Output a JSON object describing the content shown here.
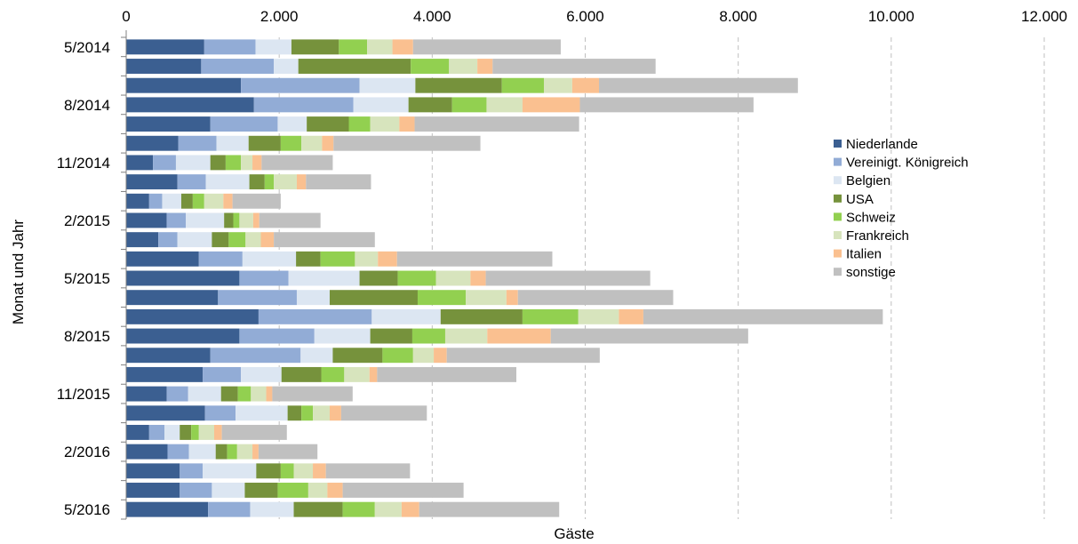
{
  "chart_data": {
    "type": "bar",
    "orientation": "horizontal",
    "stacked": true,
    "xlabel": "Gäste",
    "ylabel": "Monat und Jahr",
    "xlim": [
      0,
      12000
    ],
    "x_ticks": [
      "0",
      "2.000",
      "4.000",
      "6.000",
      "8.000",
      "10.000",
      "12.000"
    ],
    "x_axis_position": "top",
    "grid": "vertical dashed",
    "legend_position": "right",
    "categories": [
      "5/2014",
      "6/2014",
      "7/2014",
      "8/2014",
      "9/2014",
      "10/2014",
      "11/2014",
      "12/2014",
      "1/2015",
      "2/2015",
      "3/2015",
      "4/2015",
      "5/2015",
      "6/2015",
      "7/2015",
      "8/2015",
      "9/2015",
      "10/2015",
      "11/2015",
      "12/2015",
      "1/2016",
      "2/2016",
      "3/2016",
      "4/2016",
      "5/2016"
    ],
    "category_labels": [
      "5/2014",
      "",
      "",
      "8/2014",
      "",
      "",
      "11/2014",
      "",
      "",
      "2/2015",
      "",
      "",
      "5/2015",
      "",
      "",
      "8/2015",
      "",
      "",
      "11/2015",
      "",
      "",
      "2/2016",
      "",
      "",
      "5/2016"
    ],
    "series": [
      {
        "name": "Niederlande",
        "color": "#3b5f91",
        "values": [
          1020,
          980,
          1500,
          1670,
          1100,
          680,
          350,
          670,
          300,
          530,
          420,
          950,
          1480,
          1200,
          1730,
          1480,
          1100,
          1000,
          530,
          1030,
          300,
          540,
          700,
          700,
          1070
        ]
      },
      {
        "name": "Vereinigt. Königreich",
        "color": "#92acd6",
        "values": [
          670,
          950,
          1550,
          1300,
          880,
          500,
          300,
          370,
          170,
          250,
          250,
          570,
          640,
          1030,
          1480,
          980,
          1180,
          500,
          280,
          400,
          200,
          280,
          300,
          420,
          550
        ]
      },
      {
        "name": "Belgien",
        "color": "#dce6f2",
        "values": [
          470,
          320,
          730,
          720,
          380,
          420,
          450,
          570,
          250,
          500,
          450,
          700,
          930,
          430,
          900,
          730,
          420,
          530,
          430,
          680,
          200,
          350,
          700,
          430,
          570
        ]
      },
      {
        "name": "USA",
        "color": "#76923c",
        "values": [
          620,
          1470,
          1130,
          570,
          550,
          420,
          200,
          200,
          150,
          120,
          220,
          320,
          500,
          1150,
          1070,
          550,
          650,
          520,
          220,
          180,
          150,
          150,
          320,
          430,
          640
        ]
      },
      {
        "name": "Schweiz",
        "color": "#92d050",
        "values": [
          370,
          500,
          550,
          450,
          280,
          270,
          200,
          120,
          150,
          80,
          220,
          450,
          500,
          630,
          730,
          430,
          400,
          300,
          170,
          150,
          100,
          130,
          170,
          400,
          420
        ]
      },
      {
        "name": "Frankreich",
        "color": "#d7e4bd",
        "values": [
          330,
          370,
          370,
          470,
          380,
          270,
          150,
          300,
          250,
          180,
          200,
          300,
          450,
          530,
          530,
          550,
          270,
          330,
          200,
          220,
          200,
          200,
          250,
          250,
          350
        ]
      },
      {
        "name": "Italien",
        "color": "#fac090",
        "values": [
          270,
          200,
          350,
          750,
          200,
          150,
          120,
          120,
          120,
          80,
          170,
          250,
          200,
          150,
          320,
          830,
          170,
          100,
          80,
          150,
          100,
          80,
          170,
          200,
          230
        ]
      },
      {
        "name": "sonstige",
        "color": "#c0c0c0",
        "values": [
          1930,
          2130,
          2600,
          2270,
          2150,
          1920,
          930,
          850,
          630,
          800,
          1320,
          2030,
          2150,
          2030,
          3130,
          2580,
          2000,
          1820,
          1050,
          1120,
          850,
          770,
          1100,
          1580,
          1830
        ]
      }
    ]
  }
}
